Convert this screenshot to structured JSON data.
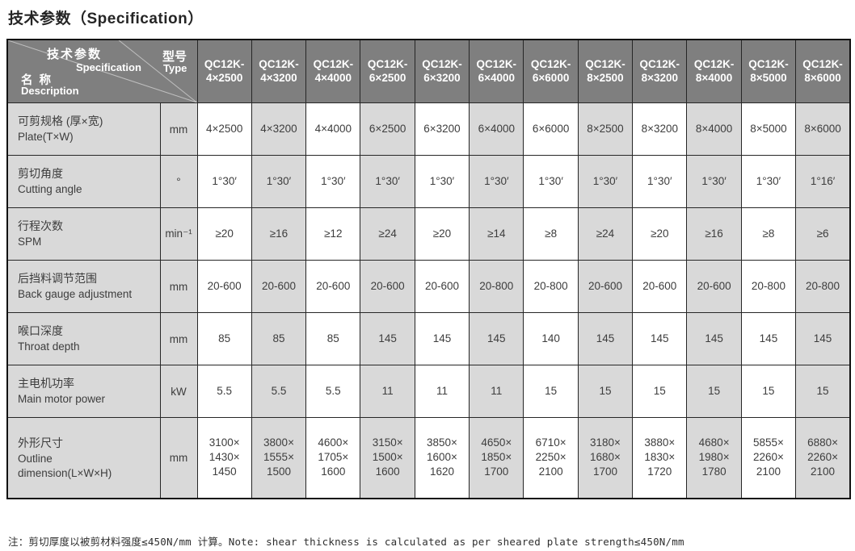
{
  "page_title": "技术参数（Specification）",
  "table": {
    "corner": {
      "param_zh": "技术参数",
      "param_en": "Specification",
      "name_zh": "名 称",
      "name_en": "Description",
      "type_zh": "型号",
      "type_en": "Type"
    },
    "model_prefix": "QC12K-",
    "model_sizes": [
      "4×2500",
      "4×3200",
      "4×4000",
      "6×2500",
      "6×3200",
      "6×4000",
      "6×6000",
      "8×2500",
      "8×3200",
      "8×4000",
      "8×5000",
      "8×6000"
    ],
    "rows": [
      {
        "label_zh": "可剪规格 (厚×宽)",
        "label_en": "Plate(T×W)",
        "unit": "mm",
        "values": [
          "4×2500",
          "4×3200",
          "4×4000",
          "6×2500",
          "6×3200",
          "6×4000",
          "6×6000",
          "8×2500",
          "8×3200",
          "8×4000",
          "8×5000",
          "8×6000"
        ]
      },
      {
        "label_zh": "剪切角度",
        "label_en": "Cutting angle",
        "unit": "°",
        "values": [
          "1°30′",
          "1°30′",
          "1°30′",
          "1°30′",
          "1°30′",
          "1°30′",
          "1°30′",
          "1°30′",
          "1°30′",
          "1°30′",
          "1°30′",
          "1°16′"
        ]
      },
      {
        "label_zh": "行程次数",
        "label_en": "SPM",
        "unit": "min⁻¹",
        "values": [
          "≥20",
          "≥16",
          "≥12",
          "≥24",
          "≥20",
          "≥14",
          "≥8",
          "≥24",
          "≥20",
          "≥16",
          "≥8",
          "≥6"
        ]
      },
      {
        "label_zh": "后挡料调节范围",
        "label_en": "Back gauge adjustment",
        "unit": "mm",
        "values": [
          "20-600",
          "20-600",
          "20-600",
          "20-600",
          "20-600",
          "20-800",
          "20-800",
          "20-600",
          "20-600",
          "20-600",
          "20-800",
          "20-800"
        ]
      },
      {
        "label_zh": "喉口深度",
        "label_en": "Throat depth",
        "unit": "mm",
        "values": [
          "85",
          "85",
          "85",
          "145",
          "145",
          "145",
          "140",
          "145",
          "145",
          "145",
          "145",
          "145"
        ]
      },
      {
        "label_zh": "主电机功率",
        "label_en": "Main motor power",
        "unit": "kW",
        "values": [
          "5.5",
          "5.5",
          "5.5",
          "11",
          "11",
          "11",
          "15",
          "15",
          "15",
          "15",
          "15",
          "15"
        ]
      },
      {
        "label_zh": "外形尺寸",
        "label_en": "Outline\ndimension(L×W×H)",
        "unit": "mm",
        "values": [
          "3100×\n1430×\n1450",
          "3800×\n1555×\n1500",
          "4600×\n1705×\n1600",
          "3150×\n1500×\n1600",
          "3850×\n1600×\n1620",
          "4650×\n1850×\n1700",
          "6710×\n2250×\n2100",
          "3180×\n1680×\n1700",
          "3880×\n1830×\n1720",
          "4680×\n1980×\n1780",
          "5855×\n2260×\n2100",
          "6880×\n2260×\n2100"
        ]
      }
    ],
    "colors": {
      "header_bg": "#7f7f7f",
      "shaded_cell_bg": "#d9d9d9",
      "plain_cell_bg": "#ffffff",
      "border": "#262626"
    }
  },
  "note": "注：剪切厚度以被剪材料强度≤450N/mm 计算。Note: shear thickness is calculated as per sheared plate strength≤450N/mm"
}
